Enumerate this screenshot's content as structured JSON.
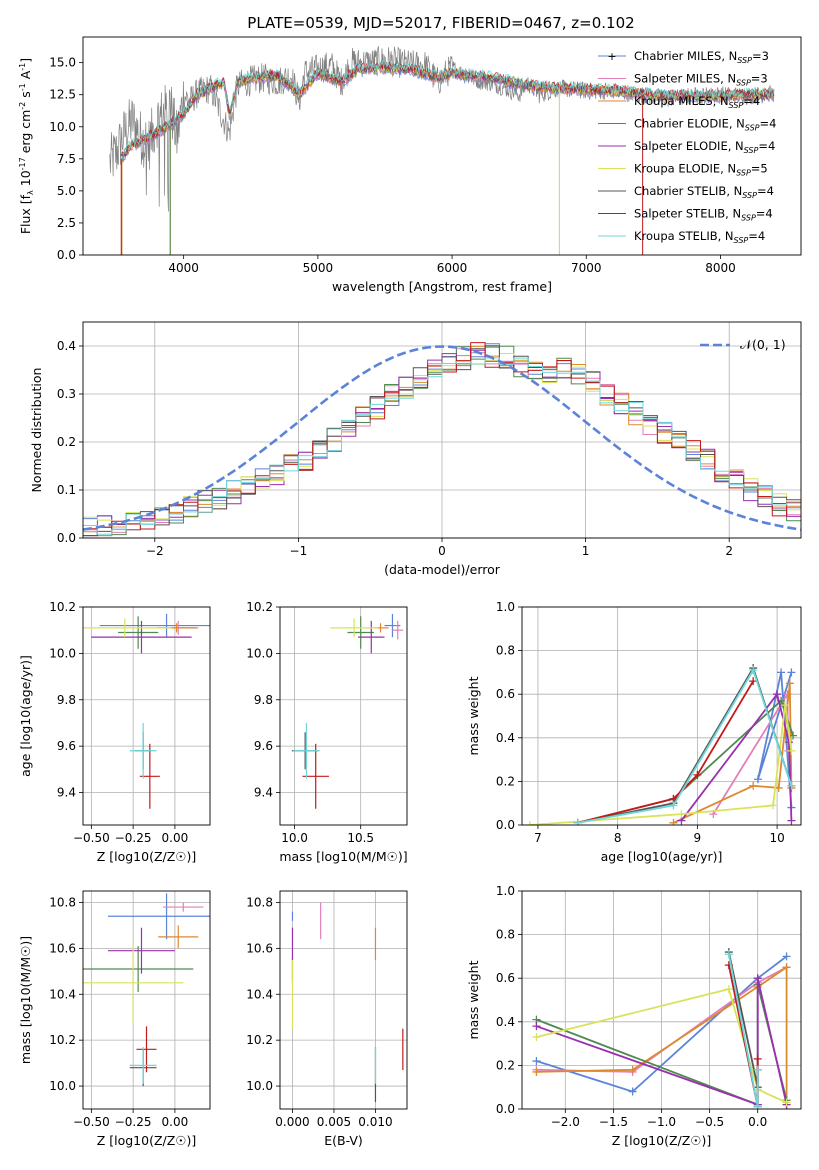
{
  "figure": {
    "title": "PLATE=0539, MJD=52017, FIBERID=0467, z=0.102"
  },
  "palette": {
    "Chabrier MILES": "#5b84d8",
    "Salpeter MILES": "#e37fb9",
    "Kroupa MILES": "#dd8a2e",
    "Chabrier ELODIE": "#4f8a4f",
    "Salpeter ELODIE": "#9a2fb0",
    "Kroupa ELODIE": "#d8e35a",
    "Chabrier STELIB": "#555555",
    "Salpeter STELIB": "#c21a1a",
    "Kroupa STELIB": "#6fd7da"
  },
  "chart_data": [
    {
      "id": "spectrum",
      "type": "line",
      "title": "PLATE=0539, MJD=52017, FIBERID=0467, z=0.102",
      "xlabel": "wavelength [Angstrom, rest frame]",
      "ylabel": "Flux [f_λ 10^-17 erg cm^-2 s^-1 A^-1]",
      "xlim": [
        3250,
        8600
      ],
      "ylim": [
        0,
        17
      ],
      "xticks": [
        4000,
        5000,
        6000,
        7000,
        8000
      ],
      "xticklabels": [
        "4000",
        "5000",
        "6000",
        "7000",
        "8000"
      ],
      "yticks": [
        0,
        2.5,
        5,
        7.5,
        10,
        12.5,
        15
      ],
      "yticklabels": [
        "0.0",
        "2.5",
        "5.0",
        "7.5",
        "10.0",
        "12.5",
        "15.0"
      ],
      "grid": false,
      "legend_position": "upper-right",
      "legend": [
        "Chabrier MILES, N_SSP=3",
        "Salpeter MILES, N_SSP=3",
        "Kroupa MILES, N_SSP=4",
        "Chabrier ELODIE, N_SSP=4",
        "Salpeter ELODIE, N_SSP=4",
        "Kroupa ELODIE, N_SSP=5",
        "Chabrier STELIB, N_SSP=4",
        "Salpeter STELIB, N_SSP=4",
        "Kroupa STELIB, N_SSP=4"
      ],
      "observed": {
        "x": [
          3450,
          3500,
          3560,
          3620,
          3680,
          3740,
          3800,
          3850,
          3900,
          3950,
          4000,
          4050,
          4100,
          4200,
          4340,
          4400,
          4500,
          4600,
          4700,
          4800,
          4861,
          4900,
          5000,
          5100,
          5175,
          5250,
          5400,
          5500,
          5600,
          5700,
          5800,
          5893,
          6000,
          6100,
          6200,
          6300,
          6400,
          6500,
          6563,
          6650,
          6800,
          7000,
          7200,
          7400,
          7600,
          7800,
          8000,
          8200,
          8400
        ],
        "y": [
          7.2,
          8.0,
          9.5,
          10.5,
          9.2,
          8.6,
          10.5,
          11.0,
          11.8,
          9.0,
          12.5,
          12.0,
          12.6,
          13.0,
          9.5,
          13.2,
          13.6,
          13.8,
          13.5,
          14.0,
          12.0,
          14.2,
          14.5,
          14.8,
          13.5,
          15.0,
          15.0,
          15.2,
          15.0,
          14.8,
          14.8,
          13.5,
          14.6,
          14.0,
          13.6,
          13.4,
          13.0,
          12.5,
          13.4,
          12.5,
          13.0,
          12.8,
          12.8,
          12.5,
          12.2,
          12.4,
          12.5,
          12.4,
          12.6
        ]
      },
      "model": {
        "x": [
          3540,
          3600,
          3700,
          3800,
          3900,
          4000,
          4100,
          4200,
          4300,
          4340,
          4400,
          4500,
          4700,
          4861,
          5000,
          5175,
          5300,
          5500,
          5700,
          5893,
          6000,
          6300,
          6563,
          6800,
          7000,
          7200,
          7400,
          7600,
          7800,
          8000,
          8200,
          8400
        ],
        "y": [
          7.5,
          8.5,
          9.0,
          9.5,
          10.2,
          11.0,
          12.5,
          13.0,
          13.5,
          11.0,
          13.5,
          13.8,
          14.0,
          12.5,
          14.2,
          13.5,
          14.5,
          14.6,
          14.5,
          13.8,
          14.2,
          13.8,
          13.2,
          13.0,
          12.9,
          12.8,
          12.6,
          12.4,
          12.4,
          12.4,
          12.5,
          12.5
        ]
      }
    },
    {
      "id": "residuals",
      "type": "line",
      "xlabel": "(data-model)/error",
      "ylabel": "Normed distribution",
      "xlim": [
        -2.5,
        2.5
      ],
      "ylim": [
        0,
        0.45
      ],
      "xticks": [
        -2,
        -1,
        0,
        1,
        2
      ],
      "xticklabels": [
        "−2",
        "−1",
        "0",
        "1",
        "2"
      ],
      "yticks": [
        0,
        0.1,
        0.2,
        0.3,
        0.4
      ],
      "yticklabels": [
        "0.0",
        "0.1",
        "0.2",
        "0.3",
        "0.4"
      ],
      "grid": true,
      "legend_position": "upper-right",
      "legend": [
        "𝒩(0, 1)"
      ],
      "bins": {
        "start": -2.5,
        "width": 0.1,
        "count": 50
      },
      "base_hist": [
        0.02,
        0.022,
        0.026,
        0.033,
        0.04,
        0.048,
        0.055,
        0.066,
        0.075,
        0.085,
        0.095,
        0.108,
        0.12,
        0.135,
        0.15,
        0.165,
        0.185,
        0.205,
        0.225,
        0.25,
        0.27,
        0.295,
        0.315,
        0.335,
        0.35,
        0.365,
        0.375,
        0.385,
        0.38,
        0.375,
        0.36,
        0.345,
        0.34,
        0.35,
        0.34,
        0.325,
        0.3,
        0.28,
        0.26,
        0.24,
        0.22,
        0.2,
        0.18,
        0.16,
        0.14,
        0.12,
        0.1,
        0.085,
        0.07,
        0.055
      ]
    },
    {
      "id": "age-vs-Z",
      "type": "scatter",
      "xlabel": "Z [log10(Z/Z☉)]",
      "ylabel": "age  [log10(age/yr)]",
      "xlim": [
        -0.55,
        0.21
      ],
      "ylim": [
        9.26,
        10.2
      ],
      "xticks": [
        -0.5,
        -0.25,
        0.0
      ],
      "xticklabels": [
        "−0.50",
        "−0.25",
        "0.00"
      ],
      "yticks": [
        9.4,
        9.6,
        9.8,
        10.0,
        10.2
      ],
      "yticklabels": [
        "9.4",
        "9.6",
        "9.8",
        "10.0",
        "10.2"
      ],
      "grid": true,
      "points": [
        {
          "model": "Chabrier MILES",
          "x": -0.05,
          "y": 10.12,
          "xerr": 0.4,
          "yerr": 0.05
        },
        {
          "model": "Salpeter MILES",
          "x": 0.02,
          "y": 10.11,
          "xerr": 0.12,
          "yerr": 0.03
        },
        {
          "model": "Kroupa MILES",
          "x": 0.01,
          "y": 10.11,
          "xerr": 0.12,
          "yerr": 0.02
        },
        {
          "model": "Chabrier ELODIE",
          "x": -0.22,
          "y": 10.09,
          "xerr": 0.12,
          "yerr": 0.07
        },
        {
          "model": "Salpeter ELODIE",
          "x": -0.2,
          "y": 10.07,
          "xerr": 0.3,
          "yerr": 0.07
        },
        {
          "model": "Kroupa ELODIE",
          "x": -0.3,
          "y": 10.11,
          "xerr": 0.28,
          "yerr": 0.04
        },
        {
          "model": "Chabrier STELIB",
          "x": -0.19,
          "y": 9.58,
          "xerr": 0.05,
          "yerr": 0.08
        },
        {
          "model": "Salpeter STELIB",
          "x": -0.15,
          "y": 9.47,
          "xerr": 0.06,
          "yerr": 0.14
        },
        {
          "model": "Kroupa STELIB",
          "x": -0.19,
          "y": 9.58,
          "xerr": 0.08,
          "yerr": 0.12
        }
      ]
    },
    {
      "id": "age-vs-mass",
      "type": "scatter",
      "xlabel": "mass [log10(M/M☉)]",
      "ylabel": "",
      "xlim": [
        9.89,
        10.85
      ],
      "ylim": [
        9.26,
        10.2
      ],
      "xticks": [
        10.0,
        10.5
      ],
      "xticklabels": [
        "10.0",
        "10.5"
      ],
      "yticks": [
        9.4,
        9.6,
        9.8,
        10.0,
        10.2
      ],
      "yticklabels": [
        "9.4",
        "9.6",
        "9.8",
        "10.0",
        "10.2"
      ],
      "grid": true,
      "points": [
        {
          "model": "Chabrier MILES",
          "x": 10.74,
          "y": 10.12,
          "xerr": 0.06,
          "yerr": 0.05
        },
        {
          "model": "Salpeter MILES",
          "x": 10.78,
          "y": 10.1,
          "xerr": 0.04,
          "yerr": 0.04
        },
        {
          "model": "Kroupa MILES",
          "x": 10.65,
          "y": 10.11,
          "xerr": 0.06,
          "yerr": 0.02
        },
        {
          "model": "Chabrier ELODIE",
          "x": 10.5,
          "y": 10.09,
          "xerr": 0.1,
          "yerr": 0.07
        },
        {
          "model": "Salpeter ELODIE",
          "x": 10.58,
          "y": 10.07,
          "xerr": 0.1,
          "yerr": 0.07
        },
        {
          "model": "Kroupa ELODIE",
          "x": 10.45,
          "y": 10.11,
          "xerr": 0.18,
          "yerr": 0.04
        },
        {
          "model": "Chabrier STELIB",
          "x": 10.08,
          "y": 9.58,
          "xerr": 0.1,
          "yerr": 0.08
        },
        {
          "model": "Salpeter STELIB",
          "x": 10.16,
          "y": 9.47,
          "xerr": 0.1,
          "yerr": 0.14
        },
        {
          "model": "Kroupa STELIB",
          "x": 10.09,
          "y": 9.58,
          "xerr": 0.1,
          "yerr": 0.12
        }
      ]
    },
    {
      "id": "weight-vs-age",
      "type": "line",
      "xlabel": "age  [log10(age/yr)]",
      "ylabel": "mass weight",
      "xlim": [
        6.8,
        10.3
      ],
      "ylim": [
        0,
        1
      ],
      "xticks": [
        7,
        8,
        9,
        10
      ],
      "xticklabels": [
        "7",
        "8",
        "9",
        "10"
      ],
      "yticks": [
        0,
        0.2,
        0.4,
        0.6,
        0.8,
        1.0
      ],
      "yticklabels": [
        "0.0",
        "0.2",
        "0.4",
        "0.6",
        "0.8",
        "1.0"
      ],
      "grid": true,
      "series": [
        {
          "model": "Chabrier MILES",
          "x": [
            10.18,
            10.05,
            9.76,
            10.18
          ],
          "y": [
            0.08,
            0.7,
            0.21,
            0.7
          ]
        },
        {
          "model": "Salpeter MILES",
          "x": [
            9.2,
            10.13,
            10.14
          ],
          "y": [
            0.05,
            0.6,
            0.34
          ]
        },
        {
          "model": "Kroupa MILES",
          "x": [
            8.7,
            9.7,
            10.02,
            10.16,
            10.18
          ],
          "y": [
            0.01,
            0.18,
            0.17,
            0.65,
            0.17
          ]
        },
        {
          "model": "Chabrier ELODIE",
          "x": [
            7.5,
            8.7,
            10.05,
            10.2
          ],
          "y": [
            0.01,
            0.12,
            0.57,
            0.41
          ]
        },
        {
          "model": "Salpeter ELODIE",
          "x": [
            8.8,
            10.0,
            10.15,
            10.18
          ],
          "y": [
            0.02,
            0.6,
            0.38,
            0.02
          ]
        },
        {
          "model": "Kroupa ELODIE",
          "x": [
            6.9,
            8.8,
            9.95,
            10.1,
            10.18
          ],
          "y": [
            0.0,
            0.05,
            0.09,
            0.55,
            0.34
          ]
        },
        {
          "model": "Chabrier STELIB",
          "x": [
            7.5,
            8.7,
            9.7,
            10.18
          ],
          "y": [
            0.01,
            0.1,
            0.72,
            0.18
          ]
        },
        {
          "model": "Salpeter STELIB",
          "x": [
            7.5,
            8.7,
            9.0,
            9.7
          ],
          "y": [
            0.01,
            0.12,
            0.23,
            0.66
          ]
        },
        {
          "model": "Kroupa STELIB",
          "x": [
            7.5,
            8.7,
            9.7,
            10.18
          ],
          "y": [
            0.01,
            0.09,
            0.71,
            0.18
          ]
        }
      ]
    },
    {
      "id": "mass-vs-Z",
      "type": "scatter",
      "xlabel": "Z [log10(Z/Z☉)]",
      "ylabel": "mass [log10(M/M☉)]",
      "xlim": [
        -0.55,
        0.21
      ],
      "ylim": [
        9.9,
        10.85
      ],
      "xticks": [
        -0.5,
        -0.25,
        0.0
      ],
      "xticklabels": [
        "−0.50",
        "−0.25",
        "0.00"
      ],
      "yticks": [
        10.0,
        10.2,
        10.4,
        10.6,
        10.8
      ],
      "yticklabels": [
        "10.0",
        "10.2",
        "10.4",
        "10.6",
        "10.8"
      ],
      "grid": true,
      "points": [
        {
          "model": "Chabrier MILES",
          "x": -0.05,
          "y": 10.74,
          "xerr": 0.35,
          "yerr": 0.1
        },
        {
          "model": "Salpeter MILES",
          "x": 0.05,
          "y": 10.78,
          "xerr": 0.12,
          "yerr": 0.02
        },
        {
          "model": "Kroupa MILES",
          "x": 0.02,
          "y": 10.65,
          "xerr": 0.12,
          "yerr": 0.05
        },
        {
          "model": "Chabrier ELODIE",
          "x": -0.22,
          "y": 10.51,
          "xerr": 0.33,
          "yerr": 0.1
        },
        {
          "model": "Salpeter ELODIE",
          "x": -0.2,
          "y": 10.59,
          "xerr": 0.2,
          "yerr": 0.1
        },
        {
          "model": "Kroupa ELODIE",
          "x": -0.25,
          "y": 10.45,
          "xerr": 0.3,
          "yerr": 0.18
        },
        {
          "model": "Chabrier STELIB",
          "x": -0.19,
          "y": 10.08,
          "xerr": 0.08,
          "yerr": 0.08
        },
        {
          "model": "Salpeter STELIB",
          "x": -0.17,
          "y": 10.16,
          "xerr": 0.06,
          "yerr": 0.1
        },
        {
          "model": "Kroupa STELIB",
          "x": -0.19,
          "y": 10.09,
          "xerr": 0.08,
          "yerr": 0.08
        }
      ]
    },
    {
      "id": "mass-vs-EBV",
      "type": "scatter",
      "xlabel": "E(B-V)",
      "ylabel": "",
      "xlim": [
        -0.0015,
        0.0138
      ],
      "ylim": [
        9.9,
        10.85
      ],
      "xticks": [
        0.0,
        0.005,
        0.01
      ],
      "xticklabels": [
        "0.000",
        "0.005",
        "0.010"
      ],
      "yticks": [
        10.0,
        10.2,
        10.4,
        10.6,
        10.8
      ],
      "yticklabels": [
        "10.0",
        "10.2",
        "10.4",
        "10.6",
        "10.8"
      ],
      "grid": true,
      "points": [
        {
          "model": "Chabrier MILES",
          "x": 0.0,
          "y": 10.74,
          "xerr": 0,
          "yerr": 0.02
        },
        {
          "model": "Salpeter MILES",
          "x": 0.0034,
          "y": 10.72,
          "xerr": 0,
          "yerr": 0.08
        },
        {
          "model": "Kroupa MILES",
          "x": 0.01,
          "y": 10.62,
          "xerr": 0,
          "yerr": 0.07
        },
        {
          "model": "Chabrier ELODIE",
          "x": 0.0,
          "y": 10.51,
          "xerr": 0,
          "yerr": 0.05
        },
        {
          "model": "Salpeter ELODIE",
          "x": 0.0,
          "y": 10.62,
          "xerr": 0,
          "yerr": 0.07
        },
        {
          "model": "Kroupa ELODIE",
          "x": 0.0,
          "y": 10.4,
          "xerr": 0,
          "yerr": 0.15
        },
        {
          "model": "Chabrier STELIB",
          "x": 0.01,
          "y": 10.05,
          "xerr": 0,
          "yerr": 0.12
        },
        {
          "model": "Salpeter STELIB",
          "x": 0.0133,
          "y": 10.16,
          "xerr": 0,
          "yerr": 0.09
        },
        {
          "model": "Kroupa STELIB",
          "x": 0.01,
          "y": 10.09,
          "xerr": 0,
          "yerr": 0.08
        }
      ]
    },
    {
      "id": "weight-vs-Z",
      "type": "line",
      "xlabel": "Z [log10(Z/Z☉)]",
      "ylabel": "mass weight",
      "xlim": [
        -2.45,
        0.45
      ],
      "ylim": [
        0,
        1
      ],
      "xticks": [
        -2.0,
        -1.5,
        -1.0,
        -0.5,
        0.0
      ],
      "xticklabels": [
        "−2.0",
        "−1.5",
        "−1.0",
        "−0.5",
        "0.0"
      ],
      "yticks": [
        0,
        0.2,
        0.4,
        0.6,
        0.8,
        1.0
      ],
      "yticklabels": [
        "0.0",
        "0.2",
        "0.4",
        "0.6",
        "0.8",
        "1.0"
      ],
      "grid": true,
      "series": [
        {
          "model": "Chabrier MILES",
          "x": [
            -2.3,
            -1.3,
            0.0,
            0.3
          ],
          "y": [
            0.22,
            0.08,
            0.6,
            0.7
          ]
        },
        {
          "model": "Salpeter MILES",
          "x": [
            -2.3,
            -1.3,
            0.0,
            0.3
          ],
          "y": [
            0.18,
            0.17,
            0.58,
            0.65
          ]
        },
        {
          "model": "Kroupa MILES",
          "x": [
            -2.3,
            -1.3,
            0.0,
            0.3,
            0.3
          ],
          "y": [
            0.17,
            0.18,
            0.56,
            0.65,
            0.02
          ]
        },
        {
          "model": "Chabrier ELODIE",
          "x": [
            -2.3,
            0.0,
            0.0,
            0.3
          ],
          "y": [
            0.41,
            0.02,
            0.57,
            0.04
          ]
        },
        {
          "model": "Salpeter ELODIE",
          "x": [
            -2.3,
            0.0,
            0.0,
            0.3
          ],
          "y": [
            0.38,
            0.02,
            0.6,
            0.02
          ]
        },
        {
          "model": "Kroupa ELODIE",
          "x": [
            -2.3,
            -0.3,
            0.0,
            0.3
          ],
          "y": [
            0.33,
            0.55,
            0.09,
            0.03
          ]
        },
        {
          "model": "Chabrier STELIB",
          "x": [
            -0.3,
            0.0,
            0.0
          ],
          "y": [
            0.72,
            0.1,
            0.18
          ]
        },
        {
          "model": "Salpeter STELIB",
          "x": [
            -0.3,
            0.0,
            0.0
          ],
          "y": [
            0.66,
            0.01,
            0.23
          ]
        },
        {
          "model": "Kroupa STELIB",
          "x": [
            -0.3,
            0.0,
            0.0
          ],
          "y": [
            0.71,
            0.01,
            0.18
          ]
        }
      ]
    }
  ]
}
